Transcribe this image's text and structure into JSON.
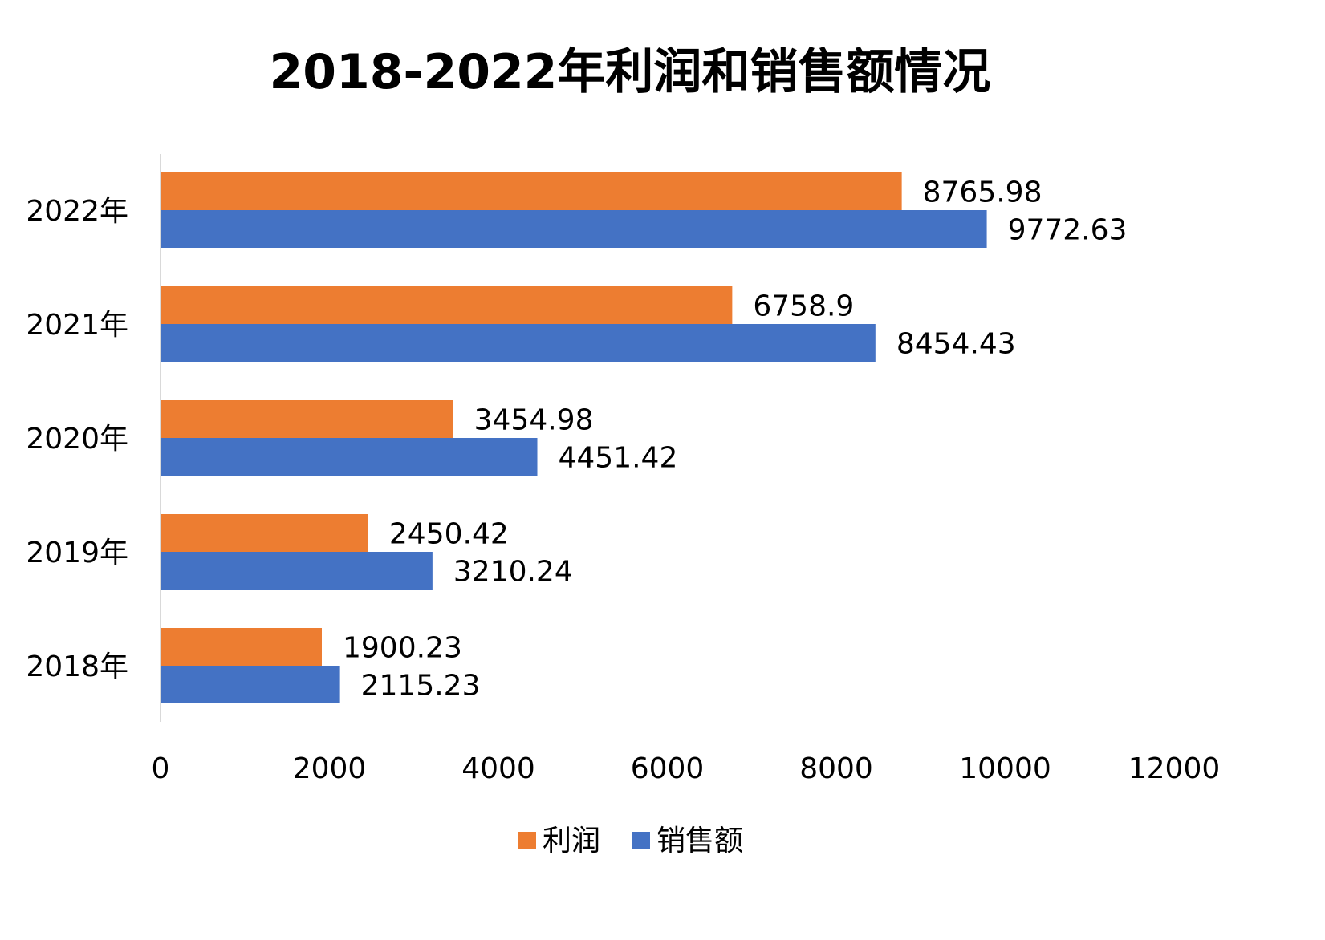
{
  "chart_data": {
    "type": "bar",
    "orientation": "horizontal",
    "title": "2018-2022年利润和销售额情况",
    "categories": [
      "2018年",
      "2019年",
      "2020年",
      "2021年",
      "2022年"
    ],
    "series": [
      {
        "name": "利润",
        "color": "#ED7D31",
        "values": [
          1900.23,
          2450.42,
          3454.98,
          6758.9,
          8765.98
        ],
        "labels": [
          "1900.23",
          "2450.42",
          "3454.98",
          "6758.9",
          "8765.98"
        ]
      },
      {
        "name": "销售额",
        "color": "#4472C4",
        "values": [
          2115.23,
          3210.24,
          4451.42,
          8454.43,
          9772.63
        ],
        "labels": [
          "2115.23",
          "3210.24",
          "4451.42",
          "8454.43",
          "9772.63"
        ]
      }
    ],
    "xlim": [
      0,
      12000
    ],
    "xticks": [
      "0",
      "2000",
      "4000",
      "6000",
      "8000",
      "10000",
      "12000"
    ],
    "grid": false,
    "legend_position": "bottom",
    "data_labels": true
  }
}
